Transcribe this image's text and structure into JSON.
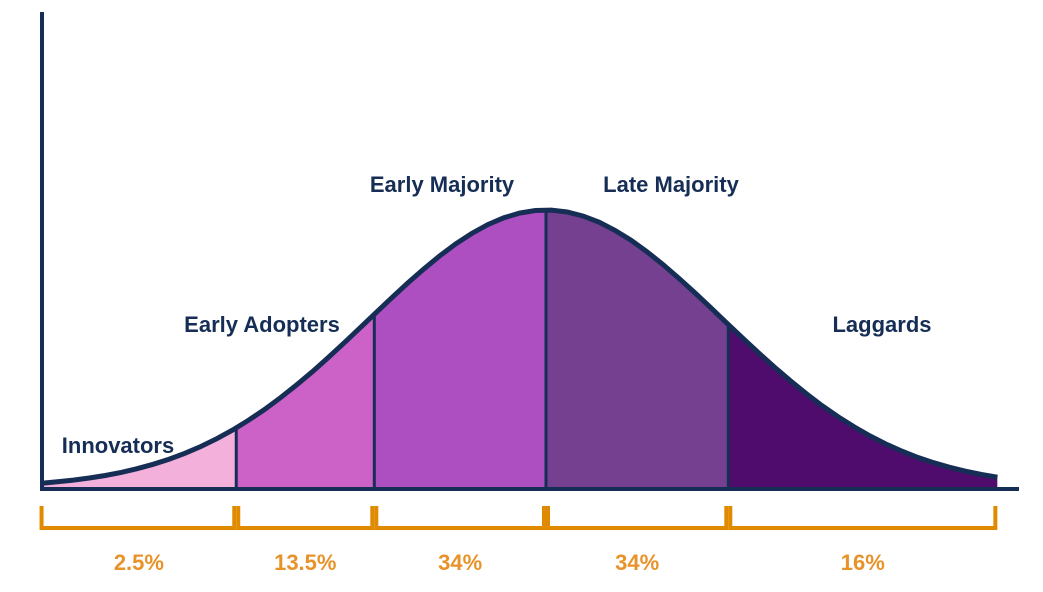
{
  "chart_data": {
    "type": "area",
    "title": "",
    "xlabel": "",
    "ylabel": "",
    "x_units": "standard deviations from mean",
    "xlim": [
      -2.85,
      2.55
    ],
    "curve": "normal distribution",
    "segments": [
      {
        "name": "Innovators",
        "from": -2.85,
        "to": -1.75,
        "percent": "2.5%",
        "color": "#f2b0da"
      },
      {
        "name": "Early Adopters",
        "from": -1.75,
        "to": -0.97,
        "percent": "13.5%",
        "color": "#cc62c8"
      },
      {
        "name": "Early Majority",
        "from": -0.97,
        "to": 0,
        "percent": "34%",
        "color": "#ad4fc0"
      },
      {
        "name": "Late Majority",
        "from": 0,
        "to": 1.03,
        "percent": "34%",
        "color": "#74408f"
      },
      {
        "name": "Laggards",
        "from": 1.03,
        "to": 2.55,
        "percent": "16%",
        "color": "#4f0c6c"
      }
    ],
    "grid": false,
    "legend": "none"
  },
  "colors": {
    "axis": "#162e55",
    "bracket": "#e08a00",
    "percent_text": "#e8922a"
  }
}
